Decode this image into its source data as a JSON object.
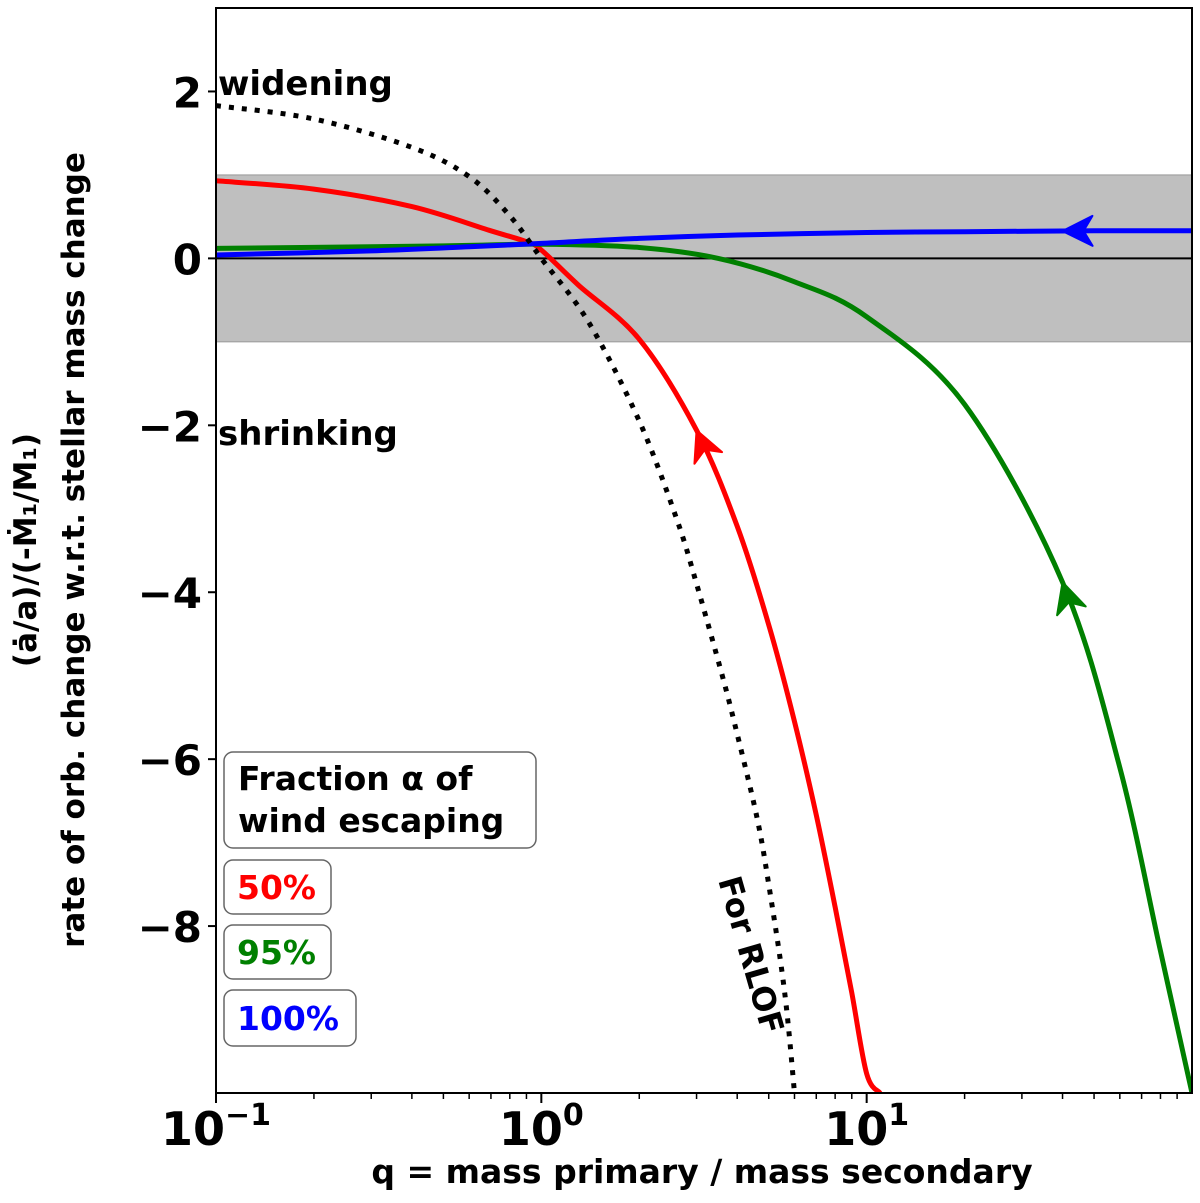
{
  "chart_data": {
    "type": "line",
    "xlabel": "q = mass primary / mass secondary",
    "ylabel_line1": "rate of orb. change w.r.t. stellar mass change",
    "ylabel_line2": "(ȧ/a)/(-Ṁ₁/M₁)",
    "xscale": "log",
    "xlim": [
      0.1,
      100
    ],
    "ylim": [
      -10,
      3
    ],
    "x_ticks": [
      {
        "value": 0.1,
        "base": "10",
        "exp": "−1"
      },
      {
        "value": 1,
        "base": "10",
        "exp": "0"
      },
      {
        "value": 10,
        "base": "10",
        "exp": "1"
      }
    ],
    "y_ticks": [
      {
        "value": 2,
        "label": "2"
      },
      {
        "value": 0,
        "label": "0"
      },
      {
        "value": -2,
        "label": "−2"
      },
      {
        "value": -4,
        "label": "−4"
      },
      {
        "value": -6,
        "label": "−6"
      },
      {
        "value": -8,
        "label": "−8"
      }
    ],
    "grey_band": {
      "ymin": -1,
      "ymax": 1,
      "color": "#bfbfbf"
    },
    "zero_line": 0,
    "region_labels": {
      "widening": "widening",
      "shrinking": "shrinking"
    },
    "rlof_label": "For RLOF",
    "legend": {
      "title_line1": "Fraction α of",
      "title_line2": "wind escaping",
      "placement": "lower-left"
    },
    "series": [
      {
        "name": "50%",
        "color": "#ff0000",
        "style": "solid",
        "x": [
          0.1,
          0.2,
          0.4,
          0.7,
          0.9,
          1.0,
          1.3,
          2.0,
          3.0,
          4.0,
          5.0,
          6.0,
          7.0,
          8.0,
          9.0,
          10.0,
          11.0
        ],
        "y": [
          0.93,
          0.83,
          0.62,
          0.33,
          0.2,
          0.1,
          -0.32,
          -0.97,
          -2.06,
          -3.21,
          -4.39,
          -5.55,
          -6.67,
          -7.77,
          -8.8,
          -9.77,
          -10.0
        ],
        "arrow_at_x": 3.0
      },
      {
        "name": "95%",
        "color": "#008000",
        "style": "solid",
        "x": [
          0.1,
          0.5,
          1.0,
          2.0,
          3.5,
          6.0,
          10.0,
          20.0,
          40.0,
          60.0,
          80.0,
          100.0
        ],
        "y": [
          0.12,
          0.15,
          0.17,
          0.13,
          0.0,
          -0.28,
          -0.7,
          -1.75,
          -3.88,
          -6.1,
          -8.3,
          -10.0
        ],
        "arrow_at_x": 40.0
      },
      {
        "name": "100%",
        "color": "#0000ff",
        "style": "solid",
        "x": [
          0.1,
          0.3,
          0.6,
          1.0,
          2.0,
          4.0,
          10.0,
          20.0,
          50.0,
          100.0
        ],
        "y": [
          0.04,
          0.09,
          0.14,
          0.18,
          0.24,
          0.28,
          0.31,
          0.32,
          0.33,
          0.33
        ],
        "arrow_at_x": 40.0
      },
      {
        "color": "#000000",
        "style": "dotted",
        "x": [
          0.1,
          0.2,
          0.4,
          0.6,
          0.8,
          1.0,
          1.4,
          2.0,
          2.6,
          3.0,
          3.6,
          4.0,
          4.6,
          5.0,
          5.6,
          6.0
        ],
        "y": [
          1.83,
          1.67,
          1.33,
          0.98,
          0.51,
          0.0,
          -0.77,
          -1.95,
          -3.11,
          -3.9,
          -5.0,
          -5.7,
          -6.7,
          -7.5,
          -8.8,
          -10.0
        ]
      }
    ]
  }
}
